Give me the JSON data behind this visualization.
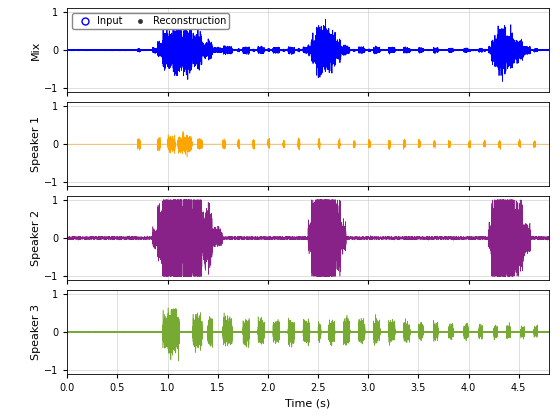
{
  "xlabel": "Time (s)",
  "ylabels": [
    "Mix",
    "Speaker 1",
    "Speaker 2",
    "Speaker 3"
  ],
  "xlim": [
    0,
    4.8
  ],
  "ylim": [
    -1.1,
    1.1
  ],
  "yticks": [
    -1,
    0,
    1
  ],
  "xticks": [
    0,
    0.5,
    1.0,
    1.5,
    2.0,
    2.5,
    3.0,
    3.5,
    4.0,
    4.5
  ],
  "colors": {
    "mix_input": "#0000FF",
    "mix_recon": "#000000",
    "speaker1": "#FFA500",
    "speaker2": "#882288",
    "speaker3": "#77AA33"
  },
  "legend": {
    "input_label": "Input",
    "recon_label": "Reconstruction"
  },
  "figsize": [
    5.6,
    4.2
  ],
  "dpi": 100,
  "sample_rate": 16000,
  "duration": 4.8
}
